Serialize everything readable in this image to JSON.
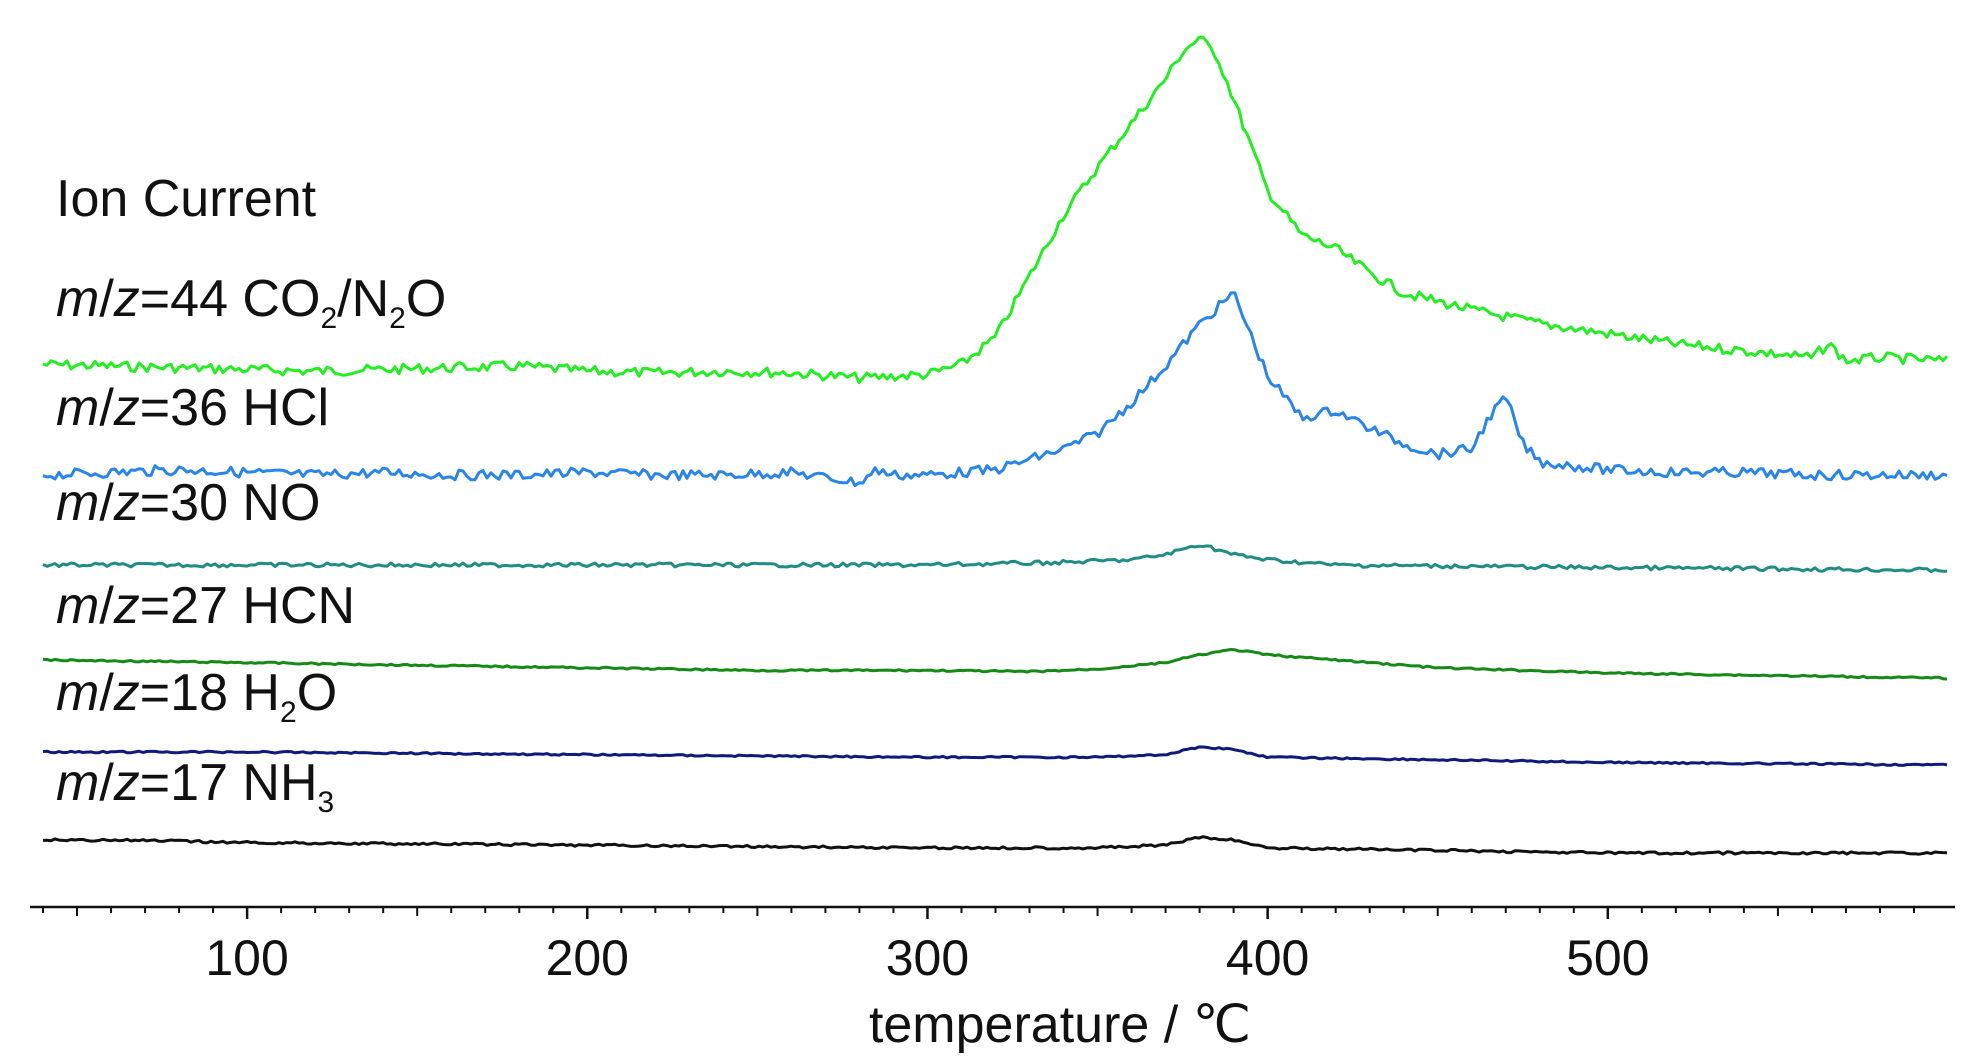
{
  "chart_data": {
    "type": "line",
    "title": "",
    "ylabel": "Ion Current",
    "xlabel": "temperature / ℃",
    "xlim": [
      40,
      600
    ],
    "x_ticks": [
      100,
      200,
      300,
      400,
      500
    ],
    "grid": false,
    "legend": "inline labels at left",
    "series": [
      {
        "name_parts": [
          "m",
          "/",
          "z",
          "=44 CO",
          "2",
          "/N",
          "2",
          "O"
        ],
        "color": "#22ee22",
        "x": [
          40,
          60,
          80,
          100,
          120,
          140,
          160,
          180,
          200,
          220,
          240,
          260,
          280,
          300,
          310,
          320,
          330,
          340,
          350,
          360,
          370,
          375,
          380,
          385,
          390,
          400,
          410,
          420,
          430,
          440,
          460,
          480,
          500,
          520,
          540,
          560,
          565,
          570,
          580,
          600
        ],
        "y": [
          0.04,
          0.035,
          0.03,
          0.025,
          0.02,
          0.025,
          0.03,
          0.035,
          0.02,
          0.015,
          0.02,
          0.015,
          0.0,
          0.01,
          0.04,
          0.12,
          0.3,
          0.48,
          0.62,
          0.75,
          0.88,
          0.96,
          1.0,
          0.95,
          0.82,
          0.55,
          0.42,
          0.38,
          0.31,
          0.25,
          0.2,
          0.16,
          0.13,
          0.1,
          0.08,
          0.06,
          0.1,
          0.05,
          0.06,
          0.05
        ]
      },
      {
        "name_parts": [
          "m",
          "/",
          "z",
          "=36 HCl"
        ],
        "color": "#2a85e8",
        "x": [
          40,
          60,
          80,
          100,
          120,
          140,
          160,
          180,
          200,
          220,
          240,
          260,
          280,
          285,
          290,
          300,
          320,
          340,
          350,
          360,
          370,
          380,
          390,
          400,
          410,
          420,
          430,
          440,
          450,
          460,
          465,
          470,
          475,
          480,
          500,
          520,
          540,
          560,
          580,
          600
        ],
        "y": [
          0.0,
          0.01,
          0.02,
          0.01,
          0.0,
          0.01,
          0.0,
          0.0,
          0.01,
          0.0,
          0.0,
          0.01,
          -0.03,
          0.02,
          0.0,
          0.0,
          0.02,
          0.1,
          0.16,
          0.28,
          0.42,
          0.58,
          0.7,
          0.38,
          0.22,
          0.25,
          0.18,
          0.12,
          0.08,
          0.1,
          0.22,
          0.3,
          0.12,
          0.05,
          0.02,
          0.01,
          0.01,
          0.0,
          0.0,
          0.0
        ]
      },
      {
        "name_parts": [
          "m",
          "/",
          "z",
          "=30 NO"
        ],
        "color": "#1f8c85",
        "x": [
          40,
          100,
          200,
          300,
          340,
          360,
          370,
          380,
          390,
          400,
          420,
          500,
          600
        ],
        "y": [
          0.0,
          0.0,
          0.0,
          0.0,
          0.01,
          0.02,
          0.04,
          0.08,
          0.04,
          0.02,
          0.0,
          -0.01,
          -0.02
        ]
      },
      {
        "name_parts": [
          "m",
          "/",
          "z",
          "=27 HCN"
        ],
        "color": "#168a16",
        "x": [
          40,
          100,
          150,
          200,
          250,
          300,
          330,
          350,
          370,
          380,
          390,
          400,
          420,
          450,
          500,
          550,
          600
        ],
        "y": [
          0.0,
          -0.01,
          -0.02,
          -0.03,
          -0.04,
          -0.04,
          -0.045,
          -0.035,
          -0.01,
          0.02,
          0.04,
          0.02,
          0.0,
          -0.03,
          -0.05,
          -0.06,
          -0.07
        ]
      },
      {
        "name_parts": [
          "m",
          "/",
          "z",
          "=18 H",
          "2",
          "O"
        ],
        "color": "#101a7a",
        "x": [
          40,
          100,
          200,
          300,
          350,
          370,
          380,
          390,
          400,
          450,
          500,
          600
        ],
        "y": [
          0.0,
          0.0,
          -0.01,
          -0.02,
          -0.02,
          -0.01,
          0.02,
          0.01,
          -0.02,
          -0.03,
          -0.04,
          -0.05
        ]
      },
      {
        "name_parts": [
          "m",
          "/",
          "z",
          "=17 NH",
          "3"
        ],
        "color": "#111111",
        "x": [
          40,
          60,
          100,
          200,
          300,
          350,
          370,
          380,
          390,
          400,
          450,
          500,
          600
        ],
        "y": [
          0.0,
          0.0,
          -0.01,
          -0.02,
          -0.03,
          -0.03,
          -0.02,
          0.01,
          0.0,
          -0.03,
          -0.04,
          -0.05,
          -0.05
        ]
      }
    ]
  }
}
